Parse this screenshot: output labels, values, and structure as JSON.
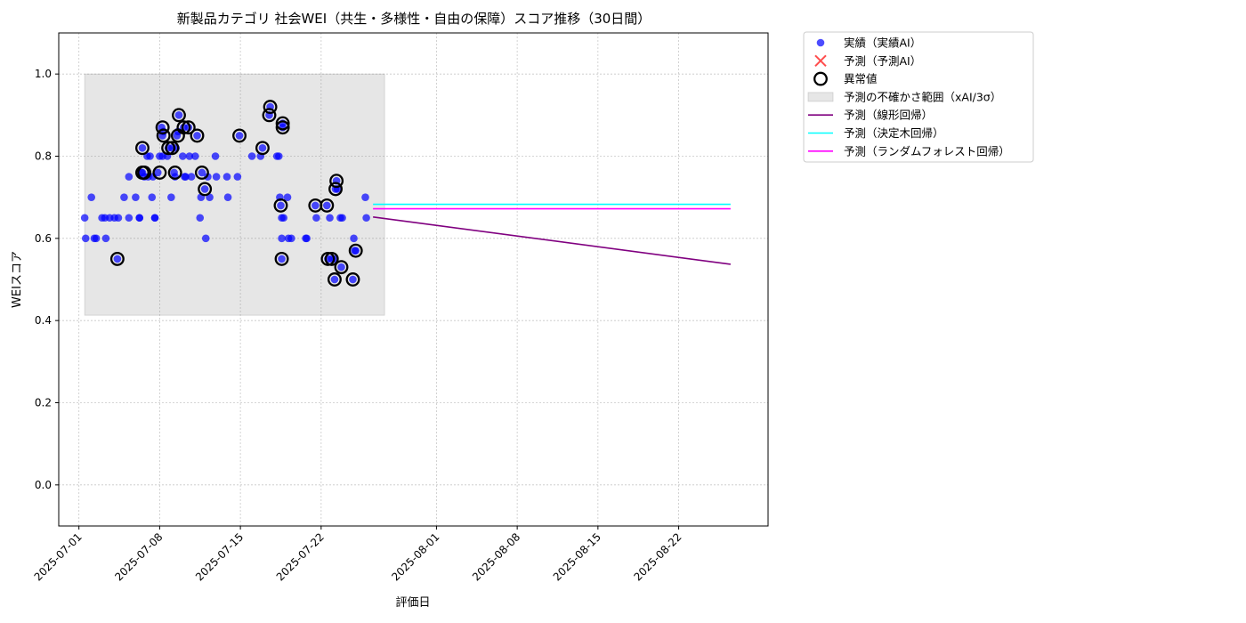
{
  "chart_data": {
    "type": "scatter",
    "title": "新製品カテゴリ 社会WEI（共生・多様性・自由の保障）スコア推移（30日間）",
    "xlabel": "評価日",
    "ylabel": "WEIスコア",
    "xlim": [
      "2025-06-29T06:00",
      "2025-08-29T18:00"
    ],
    "ylim": [
      -0.1,
      1.1
    ],
    "x_ticks": [
      "2025-07-01",
      "2025-07-08",
      "2025-07-15",
      "2025-07-22",
      "2025-08-01",
      "2025-08-08",
      "2025-08-15",
      "2025-08-22"
    ],
    "y_ticks": [
      "0.0",
      "0.2",
      "0.4",
      "0.6",
      "0.8",
      "1.0"
    ],
    "grid": true,
    "legend_position": "outside-right",
    "colors": {
      "actual": "#0000ff",
      "predicted": "#ff0000",
      "anomaly": "#000000",
      "uncertainty": "#d9d9d9",
      "linear": "#800080",
      "tree": "#00ffff",
      "forest": "#ff00ff"
    },
    "legend": [
      {
        "key": "actual",
        "label": "実績（実績AI）",
        "marker": "dot"
      },
      {
        "key": "predicted",
        "label": "予測（予測AI）",
        "marker": "cross"
      },
      {
        "key": "anomaly",
        "label": "異常値",
        "marker": "ring"
      },
      {
        "key": "uncertainty",
        "label": "予測の不確かさ範囲（xAI/3σ）",
        "marker": "box"
      },
      {
        "key": "linear",
        "label": "予測（線形回帰）",
        "marker": "line"
      },
      {
        "key": "tree",
        "label": "予測（決定木回帰）",
        "marker": "line"
      },
      {
        "key": "forest",
        "label": "予測（ランダムフォレスト回帰）",
        "marker": "line"
      }
    ],
    "uncertainty_band": {
      "x": [
        "2025-07-01T12:00",
        "2025-07-27T12:00"
      ],
      "y": [
        0.413,
        1.0
      ]
    },
    "actual": [
      [
        "2025-07-01T12:00",
        0.65
      ],
      [
        "2025-07-01T14:00",
        0.6
      ],
      [
        "2025-07-02T02:00",
        0.7
      ],
      [
        "2025-07-02T08:00",
        0.6
      ],
      [
        "2025-07-02T12:00",
        0.6
      ],
      [
        "2025-07-03T00:00",
        0.65
      ],
      [
        "2025-07-03T06:00",
        0.65
      ],
      [
        "2025-07-03T08:00",
        0.6
      ],
      [
        "2025-07-03T16:00",
        0.65
      ],
      [
        "2025-07-04T02:00",
        0.65
      ],
      [
        "2025-07-04T08:00",
        0.55
      ],
      [
        "2025-07-04T10:00",
        0.65
      ],
      [
        "2025-07-04T22:00",
        0.7
      ],
      [
        "2025-07-05T08:00",
        0.75
      ],
      [
        "2025-07-05T08:00",
        0.65
      ],
      [
        "2025-07-05T22:00",
        0.7
      ],
      [
        "2025-07-06T06:00",
        0.65
      ],
      [
        "2025-07-06T06:00",
        0.65
      ],
      [
        "2025-07-06T10:00",
        0.76
      ],
      [
        "2025-07-06T12:00",
        0.82
      ],
      [
        "2025-07-06T12:00",
        0.76
      ],
      [
        "2025-07-06T16:00",
        0.75
      ],
      [
        "2025-07-06T22:00",
        0.8
      ],
      [
        "2025-07-07T00:00",
        0.75
      ],
      [
        "2025-07-07T04:00",
        0.8
      ],
      [
        "2025-07-07T08:00",
        0.7
      ],
      [
        "2025-07-07T10:00",
        0.75
      ],
      [
        "2025-07-07T14:00",
        0.65
      ],
      [
        "2025-07-07T14:00",
        0.65
      ],
      [
        "2025-07-07T20:00",
        0.76
      ],
      [
        "2025-07-08T00:00",
        0.8
      ],
      [
        "2025-07-08T04:00",
        0.87
      ],
      [
        "2025-07-08T06:00",
        0.8
      ],
      [
        "2025-07-08T06:00",
        0.85
      ],
      [
        "2025-07-08T08:00",
        0.86
      ],
      [
        "2025-07-08T16:00",
        0.8
      ],
      [
        "2025-07-08T18:00",
        0.82
      ],
      [
        "2025-07-09T00:00",
        0.7
      ],
      [
        "2025-07-09T02:00",
        0.82
      ],
      [
        "2025-07-09T06:00",
        0.76
      ],
      [
        "2025-07-09T08:00",
        0.75
      ],
      [
        "2025-07-09T10:00",
        0.82
      ],
      [
        "2025-07-09T12:00",
        0.85
      ],
      [
        "2025-07-09T14:00",
        0.86
      ],
      [
        "2025-07-09T16:00",
        0.9
      ],
      [
        "2025-07-10T00:00",
        0.8
      ],
      [
        "2025-07-10T02:00",
        0.87
      ],
      [
        "2025-07-10T04:00",
        0.75
      ],
      [
        "2025-07-10T06:00",
        0.75
      ],
      [
        "2025-07-10T12:00",
        0.87
      ],
      [
        "2025-07-10T14:00",
        0.8
      ],
      [
        "2025-07-10T18:00",
        0.75
      ],
      [
        "2025-07-11T02:00",
        0.8
      ],
      [
        "2025-07-11T06:00",
        0.85
      ],
      [
        "2025-07-11T12:00",
        0.65
      ],
      [
        "2025-07-11T14:00",
        0.7
      ],
      [
        "2025-07-11T16:00",
        0.76
      ],
      [
        "2025-07-11T22:00",
        0.72
      ],
      [
        "2025-07-12T00:00",
        0.6
      ],
      [
        "2025-07-12T04:00",
        0.75
      ],
      [
        "2025-07-12T08:00",
        0.7
      ],
      [
        "2025-07-12T20:00",
        0.8
      ],
      [
        "2025-07-12T22:00",
        0.75
      ],
      [
        "2025-07-13T20:00",
        0.75
      ],
      [
        "2025-07-13T22:00",
        0.7
      ],
      [
        "2025-07-14T18:00",
        0.75
      ],
      [
        "2025-07-14T22:00",
        0.85
      ],
      [
        "2025-07-16T00:00",
        0.8
      ],
      [
        "2025-07-16T18:00",
        0.8
      ],
      [
        "2025-07-16T22:00",
        0.82
      ],
      [
        "2025-07-17T12:00",
        0.9
      ],
      [
        "2025-07-17T14:00",
        0.92
      ],
      [
        "2025-07-18T04:00",
        0.8
      ],
      [
        "2025-07-18T08:00",
        0.8
      ],
      [
        "2025-07-18T10:00",
        0.7
      ],
      [
        "2025-07-18T12:00",
        0.68
      ],
      [
        "2025-07-18T14:00",
        0.65
      ],
      [
        "2025-07-18T14:00",
        0.55
      ],
      [
        "2025-07-18T14:00",
        0.6
      ],
      [
        "2025-07-18T16:00",
        0.87
      ],
      [
        "2025-07-18T16:00",
        0.88
      ],
      [
        "2025-07-18T18:00",
        0.65
      ],
      [
        "2025-07-19T02:00",
        0.7
      ],
      [
        "2025-07-19T04:00",
        0.6
      ],
      [
        "2025-07-19T10:00",
        0.6
      ],
      [
        "2025-07-20T16:00",
        0.6
      ],
      [
        "2025-07-20T18:00",
        0.6
      ],
      [
        "2025-07-21T12:00",
        0.68
      ],
      [
        "2025-07-21T14:00",
        0.65
      ],
      [
        "2025-07-22T12:00",
        0.68
      ],
      [
        "2025-07-22T14:00",
        0.55
      ],
      [
        "2025-07-22T18:00",
        0.65
      ],
      [
        "2025-07-22T22:00",
        0.55
      ],
      [
        "2025-07-23T04:00",
        0.5
      ],
      [
        "2025-07-23T04:00",
        0.55
      ],
      [
        "2025-07-23T06:00",
        0.72
      ],
      [
        "2025-07-23T08:00",
        0.74
      ],
      [
        "2025-07-23T10:00",
        0.72
      ],
      [
        "2025-07-23T16:00",
        0.65
      ],
      [
        "2025-07-23T18:00",
        0.53
      ],
      [
        "2025-07-23T20:00",
        0.65
      ],
      [
        "2025-07-24T18:00",
        0.5
      ],
      [
        "2025-07-24T20:00",
        0.6
      ],
      [
        "2025-07-24T22:00",
        0.57
      ],
      [
        "2025-07-25T00:00",
        0.57
      ],
      [
        "2025-07-25T20:00",
        0.7
      ],
      [
        "2025-07-25T22:00",
        0.65
      ]
    ],
    "anomalies": [
      [
        "2025-07-04T08:00",
        0.55
      ],
      [
        "2025-07-06T12:00",
        0.82
      ],
      [
        "2025-07-06T12:00",
        0.76
      ],
      [
        "2025-07-06T16:00",
        0.76
      ],
      [
        "2025-07-08T00:00",
        0.76
      ],
      [
        "2025-07-08T06:00",
        0.87
      ],
      [
        "2025-07-08T08:00",
        0.85
      ],
      [
        "2025-07-08T18:00",
        0.82
      ],
      [
        "2025-07-09T02:00",
        0.82
      ],
      [
        "2025-07-09T08:00",
        0.76
      ],
      [
        "2025-07-09T14:00",
        0.85
      ],
      [
        "2025-07-09T16:00",
        0.9
      ],
      [
        "2025-07-10T02:00",
        0.87
      ],
      [
        "2025-07-10T12:00",
        0.87
      ],
      [
        "2025-07-11T06:00",
        0.85
      ],
      [
        "2025-07-11T16:00",
        0.76
      ],
      [
        "2025-07-11T22:00",
        0.72
      ],
      [
        "2025-07-14T22:00",
        0.85
      ],
      [
        "2025-07-16T22:00",
        0.82
      ],
      [
        "2025-07-17T12:00",
        0.9
      ],
      [
        "2025-07-17T14:00",
        0.92
      ],
      [
        "2025-07-18T12:00",
        0.68
      ],
      [
        "2025-07-18T14:00",
        0.55
      ],
      [
        "2025-07-18T16:00",
        0.87
      ],
      [
        "2025-07-18T16:00",
        0.88
      ],
      [
        "2025-07-21T12:00",
        0.68
      ],
      [
        "2025-07-22T12:00",
        0.68
      ],
      [
        "2025-07-22T14:00",
        0.55
      ],
      [
        "2025-07-22T22:00",
        0.55
      ],
      [
        "2025-07-23T04:00",
        0.5
      ],
      [
        "2025-07-23T06:00",
        0.72
      ],
      [
        "2025-07-23T08:00",
        0.74
      ],
      [
        "2025-07-23T18:00",
        0.53
      ],
      [
        "2025-07-24T18:00",
        0.5
      ],
      [
        "2025-07-25T00:00",
        0.57
      ]
    ],
    "predicted": [],
    "regression_lines": [
      {
        "key": "linear",
        "x": [
          "2025-07-26T12:00",
          "2025-08-26T12:00"
        ],
        "y": [
          0.652,
          0.537
        ]
      },
      {
        "key": "tree",
        "x": [
          "2025-07-26T12:00",
          "2025-08-26T12:00"
        ],
        "y": [
          0.683,
          0.683
        ]
      },
      {
        "key": "forest",
        "x": [
          "2025-07-26T12:00",
          "2025-08-26T12:00"
        ],
        "y": [
          0.672,
          0.672
        ]
      }
    ]
  }
}
